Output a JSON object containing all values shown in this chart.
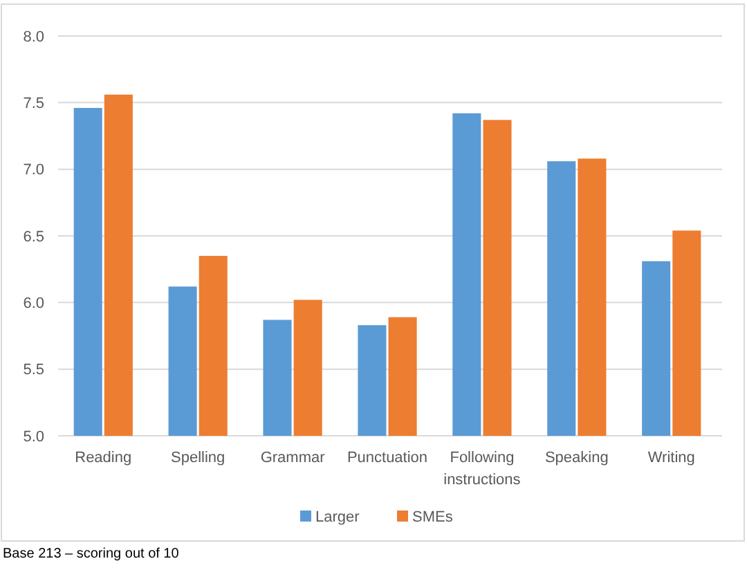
{
  "chart_data": {
    "type": "bar",
    "categories": [
      "Reading",
      "Spelling",
      "Grammar",
      "Punctuation",
      "Following instructions",
      "Speaking",
      "Writing"
    ],
    "series": [
      {
        "name": "Larger",
        "color": "#5b9bd5",
        "values": [
          7.46,
          6.12,
          5.87,
          5.83,
          7.42,
          7.06,
          6.31
        ]
      },
      {
        "name": "SMEs",
        "color": "#ed7d31",
        "values": [
          7.56,
          6.35,
          6.02,
          5.89,
          7.37,
          7.08,
          6.54
        ]
      }
    ],
    "ylim": [
      5,
      8
    ],
    "yticks": [
      {
        "value": 5,
        "label": "5.0"
      },
      {
        "value": 5.5,
        "label": "5.5"
      },
      {
        "value": 6,
        "label": "6.0"
      },
      {
        "value": 6.5,
        "label": "6.5"
      },
      {
        "value": 7,
        "label": "7.0"
      },
      {
        "value": 7.5,
        "label": "7.5"
      },
      {
        "value": 8,
        "label": "8.0"
      }
    ],
    "grid": "y",
    "legend": "bottom",
    "annotations": [
      "Base 213 – scoring out of 10"
    ]
  }
}
